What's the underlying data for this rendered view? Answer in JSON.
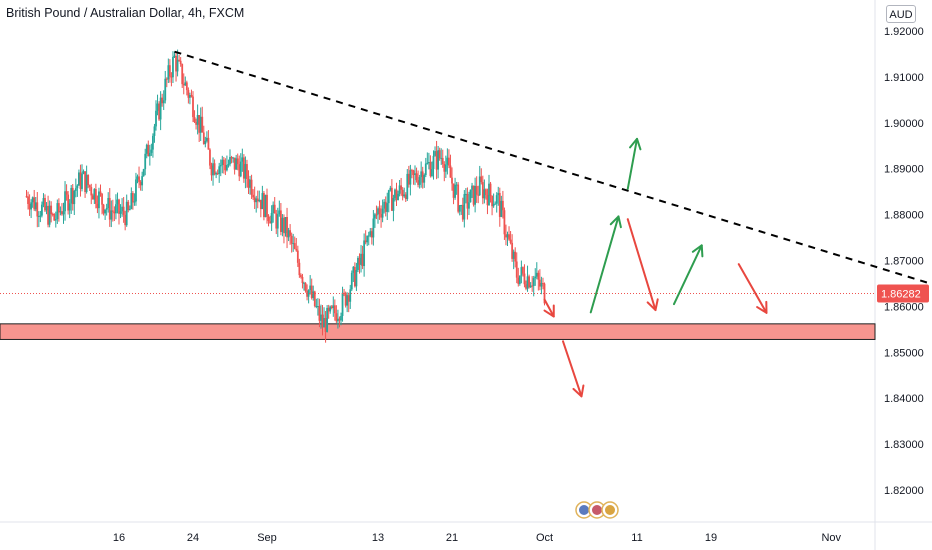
{
  "title": "British Pound / Australian Dollar, 4h, FXCM",
  "currency": "AUD",
  "colors": {
    "up": "#26a69a",
    "down": "#ef5350",
    "trendline": "#000000",
    "support_fill": "#f7958f",
    "support_border": "#1e1e1e",
    "arrow_green": "#2e9d4f",
    "arrow_red": "#e8473f",
    "price_label_bg": "#ef5350",
    "current_line": "#ef5350"
  },
  "icons": [
    "event-badge-aud-icon",
    "event-badge-gbp-icon",
    "event-badge-gbp-icon"
  ],
  "chart_data": {
    "type": "candlestick",
    "title": "British Pound / Australian Dollar, 4h, FXCM",
    "y_axis": {
      "ticks": [
        "1.92000",
        "1.91000",
        "1.90000",
        "1.89000",
        "1.88000",
        "1.87000",
        "1.86000",
        "1.85000",
        "1.84000",
        "1.83000",
        "1.82000"
      ],
      "range": [
        1.8155,
        1.9225
      ]
    },
    "x_axis": {
      "ticks": [
        "16",
        "24",
        "Sep",
        "13",
        "21",
        "Oct",
        "11",
        "19",
        "Nov"
      ]
    },
    "current_price": {
      "label": "1.86282",
      "value": 1.86282
    },
    "support_zone": {
      "low": 1.8528,
      "high": 1.8562
    },
    "trendline": {
      "from": {
        "date": "Aug 22",
        "price": 1.9155
      },
      "to": {
        "date": "Nov 12",
        "price": 1.8648
      }
    },
    "price_path": [
      {
        "date": "Aug 6",
        "price": 1.884
      },
      {
        "date": "Aug 9",
        "price": 1.879
      },
      {
        "date": "Aug 12",
        "price": 1.888
      },
      {
        "date": "Aug 15",
        "price": 1.881
      },
      {
        "date": "Aug 17",
        "price": 1.88
      },
      {
        "date": "Aug 19",
        "price": 1.893
      },
      {
        "date": "Aug 21",
        "price": 1.908
      },
      {
        "date": "Aug 22",
        "price": 1.914
      },
      {
        "date": "Aug 24",
        "price": 1.904
      },
      {
        "date": "Aug 26",
        "price": 1.891
      },
      {
        "date": "Aug 29",
        "price": 1.891
      },
      {
        "date": "Sep 1",
        "price": 1.881
      },
      {
        "date": "Sep 3",
        "price": 1.877
      },
      {
        "date": "Sep 5",
        "price": 1.866
      },
      {
        "date": "Sep 7",
        "price": 1.856
      },
      {
        "date": "Sep 9",
        "price": 1.86
      },
      {
        "date": "Sep 11",
        "price": 1.869
      },
      {
        "date": "Sep 13",
        "price": 1.881
      },
      {
        "date": "Sep 16",
        "price": 1.886
      },
      {
        "date": "Sep 18",
        "price": 1.89
      },
      {
        "date": "Sep 20",
        "price": 1.893
      },
      {
        "date": "Sep 22",
        "price": 1.881
      },
      {
        "date": "Sep 24",
        "price": 1.886
      },
      {
        "date": "Sep 26",
        "price": 1.883
      },
      {
        "date": "Sep 28",
        "price": 1.867
      },
      {
        "date": "Sep 30",
        "price": 1.866
      },
      {
        "date": "Oct 1",
        "price": 1.863
      }
    ],
    "annotations": {
      "arrows": [
        {
          "color": "green",
          "from": {
            "date": "Oct 6",
            "price": 1.8587
          },
          "to": {
            "date": "Oct 9",
            "price": 1.8796
          }
        },
        {
          "color": "green",
          "from": {
            "date": "Oct 10",
            "price": 1.8856
          },
          "to": {
            "date": "Oct 11",
            "price": 1.8965
          }
        },
        {
          "color": "green",
          "from": {
            "date": "Oct 15",
            "price": 1.8605
          },
          "to": {
            "date": "Oct 18",
            "price": 1.8733
          }
        },
        {
          "color": "red",
          "from": {
            "date": "Oct 1",
            "price": 1.8615
          },
          "to": {
            "date": "Oct 2",
            "price": 1.8578
          }
        },
        {
          "color": "red",
          "from": {
            "date": "Oct 3",
            "price": 1.8524
          },
          "to": {
            "date": "Oct 5",
            "price": 1.8404
          }
        },
        {
          "color": "red",
          "from": {
            "date": "Oct 10",
            "price": 1.879
          },
          "to": {
            "date": "Oct 13",
            "price": 1.8592
          }
        },
        {
          "color": "red",
          "from": {
            "date": "Oct 22",
            "price": 1.8692
          },
          "to": {
            "date": "Oct 25",
            "price": 1.8586
          }
        }
      ]
    }
  }
}
